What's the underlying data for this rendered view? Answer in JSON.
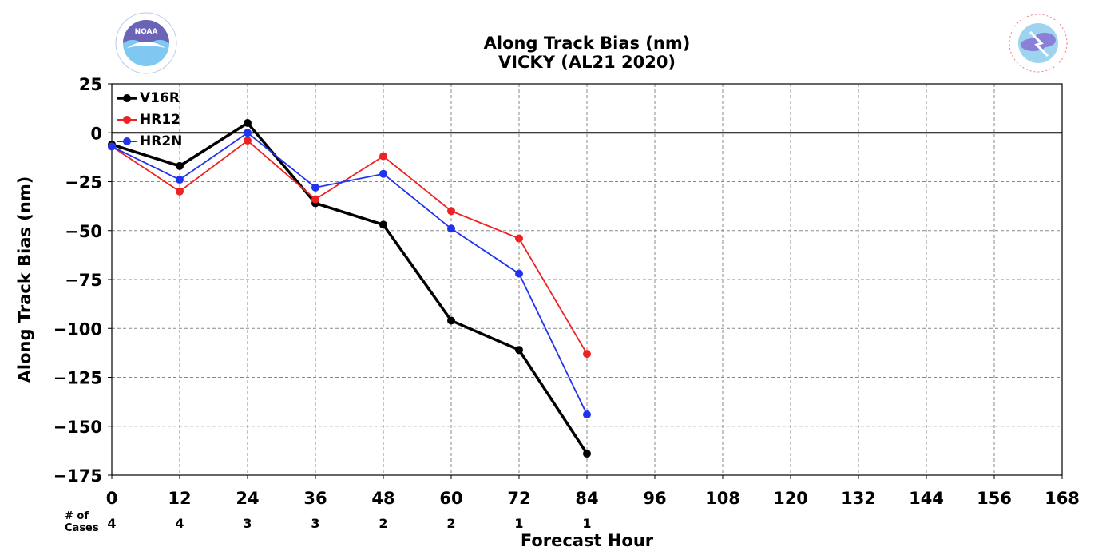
{
  "header": {
    "title_line1": "Along Track Bias (nm)",
    "title_line2": "VICKY (AL21 2020)"
  },
  "logos": {
    "left": "noaa-logo",
    "right": "nws-logo"
  },
  "chart_data": {
    "type": "line",
    "title": "Along Track Bias (nm)",
    "subtitle": "VICKY (AL21 2020)",
    "xlabel": "Forecast Hour",
    "ylabel": "Along Track Bias (nm)",
    "xlim": [
      0,
      168
    ],
    "ylim": [
      -175,
      25
    ],
    "xticks": [
      0,
      12,
      24,
      36,
      48,
      60,
      72,
      84,
      96,
      108,
      120,
      132,
      144,
      156,
      168
    ],
    "yticks": [
      25,
      0,
      -25,
      -50,
      -75,
      -100,
      -125,
      -150,
      -175
    ],
    "ytick_labels": [
      "25",
      "0",
      "−25",
      "−50",
      "−75",
      "−100",
      "−125",
      "−150",
      "−175"
    ],
    "grid": true,
    "legend_position": "top-left",
    "x": [
      0,
      12,
      24,
      36,
      48,
      60,
      72,
      84
    ],
    "series": [
      {
        "name": "V16R",
        "color": "#000000",
        "values": [
          -6,
          -17,
          5,
          -36,
          -47,
          -96,
          -111,
          -164
        ]
      },
      {
        "name": "HR12",
        "color": "#ee2222",
        "values": [
          -7,
          -30,
          -4,
          -34,
          -12,
          -40,
          -54,
          -113
        ]
      },
      {
        "name": "HR2N",
        "color": "#2233ee",
        "values": [
          -7,
          -24,
          0,
          -28,
          -21,
          -49,
          -72,
          -144
        ]
      }
    ],
    "cases_label": "# of\nCases",
    "cases": [
      4,
      4,
      3,
      3,
      2,
      2,
      1,
      1
    ]
  }
}
